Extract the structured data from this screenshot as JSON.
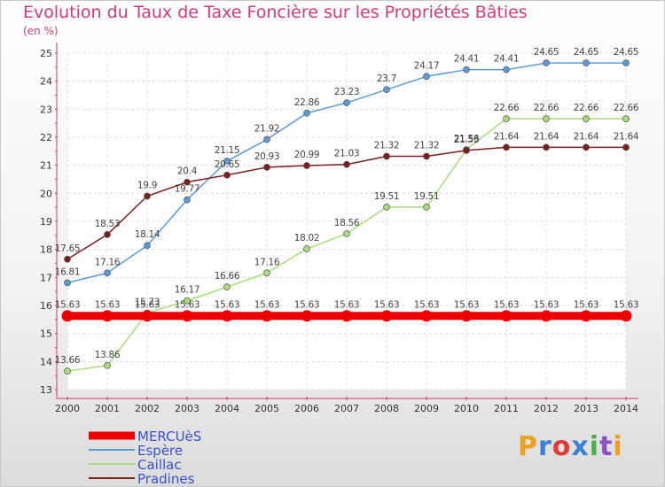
{
  "title": "Evolution du Taux de Taxe Foncière sur les Propriétés Bâties",
  "unit": "(en %)",
  "logo": "Proxiti",
  "chart_data": {
    "type": "line",
    "x": [
      2000,
      2001,
      2002,
      2003,
      2004,
      2005,
      2006,
      2007,
      2008,
      2009,
      2010,
      2011,
      2012,
      2013,
      2014
    ],
    "ylim": [
      13,
      25
    ],
    "yticks": [
      13,
      14,
      15,
      16,
      17,
      18,
      19,
      20,
      21,
      22,
      23,
      24,
      25
    ],
    "grid": true,
    "legend_position": "bottom-left",
    "series": [
      {
        "name": "MERCUèS",
        "color": "#ee0000",
        "values": [
          15.63,
          15.63,
          15.63,
          15.63,
          15.63,
          15.63,
          15.63,
          15.63,
          15.63,
          15.63,
          15.63,
          15.63,
          15.63,
          15.63,
          15.63
        ]
      },
      {
        "name": "Espère",
        "color": "#5b9bd5",
        "values": [
          16.81,
          17.16,
          18.14,
          19.77,
          21.15,
          21.92,
          22.86,
          23.23,
          23.7,
          24.17,
          24.41,
          24.41,
          24.65,
          24.65,
          24.65
        ]
      },
      {
        "name": "Caillac",
        "color": "#a9dc7a",
        "values": [
          13.66,
          13.86,
          15.73,
          16.17,
          16.66,
          17.16,
          18.02,
          18.56,
          19.51,
          19.51,
          21.56,
          22.66,
          22.66,
          22.66,
          22.66
        ]
      },
      {
        "name": "Pradines",
        "color": "#7a1e1e",
        "values": [
          17.65,
          18.53,
          19.9,
          20.4,
          20.65,
          20.93,
          20.99,
          21.03,
          21.32,
          21.32,
          21.53,
          21.64,
          21.64,
          21.64,
          21.64
        ]
      }
    ]
  }
}
